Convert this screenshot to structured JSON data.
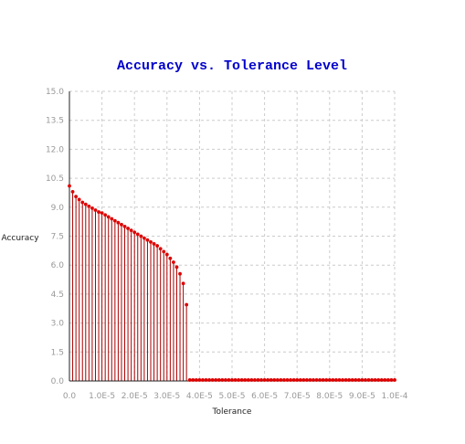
{
  "chart_data": {
    "type": "scatter",
    "style": "stem",
    "title": "Accuracy vs. Tolerance Level",
    "xlabel": "Tolerance",
    "ylabel": "Accuracy",
    "xlim": [
      0,
      0.0001
    ],
    "ylim": [
      0,
      15
    ],
    "x_tick_labels": [
      "0.0",
      "1.0E-5",
      "2.0E-5",
      "3.0E-5",
      "4.0E-5",
      "5.0E-5",
      "6.0E-5",
      "7.0E-5",
      "8.0E-5",
      "9.0E-5",
      "1.0E-4"
    ],
    "y_tick_labels": [
      "0.0",
      "1.5",
      "3.0",
      "4.5",
      "6.0",
      "7.5",
      "9.0",
      "10.5",
      "12.0",
      "13.5",
      "15.0"
    ],
    "grid": true,
    "colors": {
      "title": "#0000cc",
      "series": "#dd0000",
      "stem": "#aa0000",
      "grid": "#cccccc"
    },
    "series": [
      {
        "x": [
          0.0,
          1e-06,
          2e-06,
          3e-06,
          4e-06,
          5e-06,
          6e-06,
          7e-06,
          8e-06,
          9e-06,
          1e-05,
          1.1e-05,
          1.2e-05,
          1.3e-05,
          1.4e-05,
          1.5e-05,
          1.6e-05,
          1.7e-05,
          1.8e-05,
          1.9e-05,
          2e-05,
          2.1e-05,
          2.2e-05,
          2.3e-05,
          2.4e-05,
          2.5e-05,
          2.6e-05,
          2.7e-05,
          2.8e-05,
          2.9e-05,
          3e-05,
          3.1e-05,
          3.2e-05,
          3.3e-05,
          3.4e-05,
          3.5e-05,
          3.6e-05,
          3.7e-05,
          3.8e-05,
          3.9e-05,
          4e-05,
          4.1e-05,
          4.2e-05,
          4.3e-05,
          4.4e-05,
          4.5e-05,
          4.6e-05,
          4.7e-05,
          4.8e-05,
          4.9e-05,
          5e-05,
          5.1e-05,
          5.2e-05,
          5.3e-05,
          5.4e-05,
          5.5e-05,
          5.6e-05,
          5.7e-05,
          5.8e-05,
          5.9e-05,
          6e-05,
          6.1e-05,
          6.2e-05,
          6.3e-05,
          6.4e-05,
          6.5e-05,
          6.6e-05,
          6.7e-05,
          6.8e-05,
          6.9e-05,
          7e-05,
          7.1e-05,
          7.2e-05,
          7.3e-05,
          7.4e-05,
          7.5e-05,
          7.6e-05,
          7.7e-05,
          7.8e-05,
          7.9e-05,
          8e-05,
          8.1e-05,
          8.2e-05,
          8.3e-05,
          8.4e-05,
          8.5e-05,
          8.6e-05,
          8.7e-05,
          8.8e-05,
          8.9e-05,
          9e-05,
          9.1e-05,
          9.2e-05,
          9.3e-05,
          9.4e-05,
          9.5e-05,
          9.6e-05,
          9.7e-05,
          9.8e-05,
          9.9e-05,
          0.0001
        ],
        "y": [
          10.1,
          9.8,
          9.55,
          9.4,
          9.25,
          9.15,
          9.05,
          8.95,
          8.85,
          8.75,
          8.7,
          8.6,
          8.5,
          8.4,
          8.3,
          8.2,
          8.1,
          8.0,
          7.9,
          7.8,
          7.7,
          7.6,
          7.5,
          7.4,
          7.3,
          7.2,
          7.1,
          7.0,
          6.85,
          6.7,
          6.55,
          6.35,
          6.15,
          5.9,
          5.55,
          5.05,
          3.95,
          0.05,
          0.05,
          0.05,
          0.05,
          0.05,
          0.05,
          0.05,
          0.05,
          0.05,
          0.05,
          0.05,
          0.05,
          0.05,
          0.05,
          0.05,
          0.05,
          0.05,
          0.05,
          0.05,
          0.05,
          0.05,
          0.05,
          0.05,
          0.05,
          0.05,
          0.05,
          0.05,
          0.05,
          0.05,
          0.05,
          0.05,
          0.05,
          0.05,
          0.05,
          0.05,
          0.05,
          0.05,
          0.05,
          0.05,
          0.05,
          0.05,
          0.05,
          0.05,
          0.05,
          0.05,
          0.05,
          0.05,
          0.05,
          0.05,
          0.05,
          0.05,
          0.05,
          0.05,
          0.05,
          0.05,
          0.05,
          0.05,
          0.05,
          0.05,
          0.05,
          0.05,
          0.05,
          0.05,
          0.05
        ]
      }
    ]
  }
}
